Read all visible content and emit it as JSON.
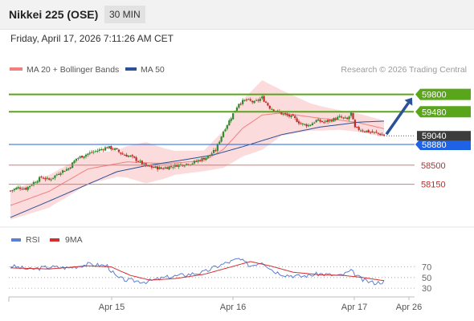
{
  "header": {
    "title": "Nikkei 225 (OSE)",
    "interval": "30 MIN"
  },
  "datetime": "Friday, April 17, 2026 7:11:26 AM CET",
  "colors": {
    "up_candle": "#2e8b2e",
    "down_candle": "#c62828",
    "resistance": "#5aa61a",
    "support": "#e57373",
    "pivot": "#1e63e6",
    "ma50": "#2b5197",
    "bollinger": "#f7b8b8",
    "rsi": "#5b7fd6",
    "rsi_ma": "#d32f2f",
    "arrow": "#2b5197"
  },
  "chart_data": [
    {
      "type": "candlestick",
      "legend": [
        {
          "label": "MA 20 + Bollinger Bands",
          "color": "#f08080"
        },
        {
          "label": "MA 50",
          "color": "#2b5197"
        }
      ],
      "source": "Research © 2026 Trading Central",
      "ylim": [
        57480,
        60060
      ],
      "x_ticks": [
        "Apr 15",
        "Apr 16",
        "Apr 17",
        "Apr 26"
      ],
      "last_price": {
        "label": "59040",
        "value": 59040
      },
      "levels": [
        {
          "label": "59800",
          "value": 59800,
          "kind": "resistance"
        },
        {
          "label": "59480",
          "value": 59480,
          "kind": "resistance"
        },
        {
          "label": "58880",
          "value": 58880,
          "kind": "pivot"
        },
        {
          "label": "58500",
          "value": 58500,
          "kind": "support"
        },
        {
          "label": "58150",
          "value": 58150,
          "kind": "support"
        }
      ],
      "forecast_arrow": {
        "from": 59040,
        "to": 59740
      },
      "price_anchors": [
        [
          0,
          58030
        ],
        [
          4,
          58090
        ],
        [
          8,
          58070
        ],
        [
          12,
          58180
        ],
        [
          16,
          58280
        ],
        [
          20,
          58230
        ],
        [
          26,
          58380
        ],
        [
          30,
          58440
        ],
        [
          34,
          58620
        ],
        [
          40,
          58710
        ],
        [
          46,
          58780
        ],
        [
          50,
          58830
        ],
        [
          54,
          58790
        ],
        [
          58,
          58700
        ],
        [
          62,
          58660
        ],
        [
          66,
          58580
        ],
        [
          70,
          58480
        ],
        [
          74,
          58460
        ],
        [
          78,
          58440
        ],
        [
          82,
          58470
        ],
        [
          86,
          58500
        ],
        [
          90,
          58520
        ],
        [
          94,
          58540
        ],
        [
          98,
          58600
        ],
        [
          102,
          58660
        ],
        [
          106,
          58780
        ],
        [
          110,
          59120
        ],
        [
          114,
          59380
        ],
        [
          118,
          59640
        ],
        [
          122,
          59700
        ],
        [
          126,
          59650
        ],
        [
          130,
          59740
        ],
        [
          134,
          59560
        ],
        [
          138,
          59480
        ],
        [
          142,
          59420
        ],
        [
          146,
          59380
        ],
        [
          150,
          59260
        ],
        [
          154,
          59230
        ],
        [
          158,
          59320
        ],
        [
          162,
          59290
        ],
        [
          166,
          59330
        ],
        [
          170,
          59380
        ],
        [
          174,
          59340
        ],
        [
          176,
          59450
        ],
        [
          178,
          59180
        ],
        [
          182,
          59140
        ],
        [
          186,
          59110
        ],
        [
          190,
          59080
        ],
        [
          193,
          59050
        ]
      ],
      "ma20_anchors": [
        [
          0,
          57760
        ],
        [
          20,
          58020
        ],
        [
          40,
          58430
        ],
        [
          60,
          58560
        ],
        [
          80,
          58530
        ],
        [
          100,
          58580
        ],
        [
          110,
          58790
        ],
        [
          120,
          59180
        ],
        [
          130,
          59420
        ],
        [
          140,
          59460
        ],
        [
          150,
          59410
        ],
        [
          160,
          59360
        ],
        [
          170,
          59330
        ],
        [
          180,
          59280
        ],
        [
          193,
          59170
        ]
      ],
      "band_width_anchors": [
        [
          0,
          260
        ],
        [
          20,
          300
        ],
        [
          40,
          280
        ],
        [
          55,
          240
        ],
        [
          70,
          380
        ],
        [
          85,
          220
        ],
        [
          100,
          190
        ],
        [
          110,
          340
        ],
        [
          120,
          520
        ],
        [
          130,
          640
        ],
        [
          140,
          420
        ],
        [
          155,
          250
        ],
        [
          170,
          180
        ],
        [
          193,
          150
        ]
      ],
      "ma50_anchors": [
        [
          0,
          57540
        ],
        [
          20,
          57840
        ],
        [
          40,
          58150
        ],
        [
          55,
          58380
        ],
        [
          70,
          58490
        ],
        [
          90,
          58600
        ],
        [
          105,
          58690
        ],
        [
          120,
          58840
        ],
        [
          140,
          59060
        ],
        [
          160,
          59200
        ],
        [
          180,
          59290
        ],
        [
          193,
          59310
        ]
      ]
    },
    {
      "type": "line",
      "legend": [
        {
          "label": "RSI",
          "color": "#5b7fd6"
        },
        {
          "label": "9MA",
          "color": "#d32f2f"
        }
      ],
      "ylim": [
        18,
        95
      ],
      "y_ticks": [
        {
          "label": "70",
          "value": 70
        },
        {
          "label": "50",
          "value": 50
        },
        {
          "label": "30",
          "value": 30
        }
      ],
      "rsi_anchors": [
        [
          0,
          72
        ],
        [
          10,
          65
        ],
        [
          20,
          70
        ],
        [
          30,
          68
        ],
        [
          40,
          75
        ],
        [
          50,
          72
        ],
        [
          55,
          50
        ],
        [
          60,
          45
        ],
        [
          70,
          42
        ],
        [
          80,
          50
        ],
        [
          90,
          55
        ],
        [
          100,
          60
        ],
        [
          106,
          70
        ],
        [
          112,
          78
        ],
        [
          118,
          85
        ],
        [
          124,
          72
        ],
        [
          130,
          80
        ],
        [
          136,
          62
        ],
        [
          142,
          55
        ],
        [
          150,
          52
        ],
        [
          160,
          57
        ],
        [
          170,
          53
        ],
        [
          176,
          62
        ],
        [
          182,
          45
        ],
        [
          188,
          40
        ],
        [
          193,
          42
        ]
      ],
      "rsi_ma_anchors": [
        [
          0,
          68
        ],
        [
          20,
          66
        ],
        [
          40,
          72
        ],
        [
          52,
          70
        ],
        [
          62,
          54
        ],
        [
          72,
          45
        ],
        [
          85,
          48
        ],
        [
          100,
          56
        ],
        [
          112,
          68
        ],
        [
          124,
          80
        ],
        [
          134,
          72
        ],
        [
          146,
          60
        ],
        [
          160,
          55
        ],
        [
          172,
          54
        ],
        [
          182,
          50
        ],
        [
          193,
          44
        ]
      ]
    }
  ]
}
